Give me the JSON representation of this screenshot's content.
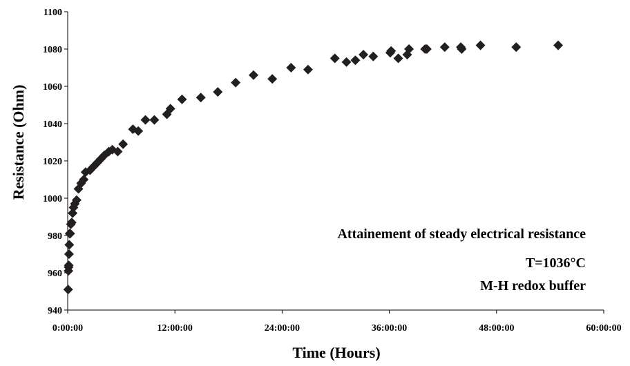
{
  "chart_data": {
    "type": "scatter",
    "title": "",
    "xlabel": "Time (Hours)",
    "ylabel": "Resistance (Ohm)",
    "xlim": [
      0,
      60
    ],
    "ylim": [
      940,
      1100
    ],
    "x_ticks": [
      0,
      12,
      24,
      36,
      48,
      60
    ],
    "x_tick_labels": [
      "0:00:00",
      "12:00:00",
      "24:00:00",
      "36:00:00",
      "48:00:00",
      "60:00:00"
    ],
    "y_ticks": [
      940,
      960,
      980,
      1000,
      1020,
      1040,
      1060,
      1080,
      1100
    ],
    "y_tick_labels": [
      "940",
      "960",
      "980",
      "1000",
      "1020",
      "1040",
      "1060",
      "1080",
      "1100"
    ],
    "grid": false,
    "legend": false,
    "marker": "diamond",
    "marker_color": "#231f20",
    "annotations": [
      "Attainement of steady electrical  resistance",
      "T=1036°C",
      "M-H redox buffer"
    ],
    "series": [
      {
        "points": [
          [
            0.05,
            951
          ],
          [
            0.08,
            961
          ],
          [
            0.1,
            963
          ],
          [
            0.12,
            964
          ],
          [
            0.15,
            970
          ],
          [
            0.18,
            975
          ],
          [
            0.22,
            981
          ],
          [
            0.28,
            981
          ],
          [
            0.35,
            986
          ],
          [
            0.45,
            987
          ],
          [
            0.55,
            992
          ],
          [
            0.65,
            995
          ],
          [
            0.8,
            997
          ],
          [
            1.0,
            999
          ],
          [
            1.2,
            1005
          ],
          [
            1.5,
            1008
          ],
          [
            1.8,
            1010
          ],
          [
            2.0,
            1014
          ],
          [
            2.5,
            1015
          ],
          [
            2.9,
            1017
          ],
          [
            3.3,
            1019
          ],
          [
            3.7,
            1021
          ],
          [
            4.1,
            1023
          ],
          [
            4.6,
            1025
          ],
          [
            5.0,
            1026
          ],
          [
            5.6,
            1025
          ],
          [
            6.2,
            1029
          ],
          [
            7.3,
            1037
          ],
          [
            7.9,
            1036
          ],
          [
            8.7,
            1042
          ],
          [
            9.7,
            1042
          ],
          [
            11.1,
            1045
          ],
          [
            11.5,
            1048
          ],
          [
            12.8,
            1053
          ],
          [
            14.9,
            1054
          ],
          [
            16.8,
            1057
          ],
          [
            18.8,
            1062
          ],
          [
            20.8,
            1066
          ],
          [
            22.9,
            1064
          ],
          [
            25.0,
            1070
          ],
          [
            26.9,
            1069
          ],
          [
            29.9,
            1075
          ],
          [
            31.2,
            1073
          ],
          [
            32.2,
            1074
          ],
          [
            33.1,
            1077
          ],
          [
            34.2,
            1076
          ],
          [
            36.1,
            1078
          ],
          [
            36.2,
            1079
          ],
          [
            37.0,
            1075
          ],
          [
            38.0,
            1077
          ],
          [
            38.2,
            1080
          ],
          [
            40.0,
            1080
          ],
          [
            40.2,
            1080
          ],
          [
            42.2,
            1081
          ],
          [
            44.0,
            1081
          ],
          [
            44.1,
            1080
          ],
          [
            46.2,
            1082
          ],
          [
            50.2,
            1081
          ],
          [
            54.9,
            1082
          ]
        ]
      }
    ]
  }
}
